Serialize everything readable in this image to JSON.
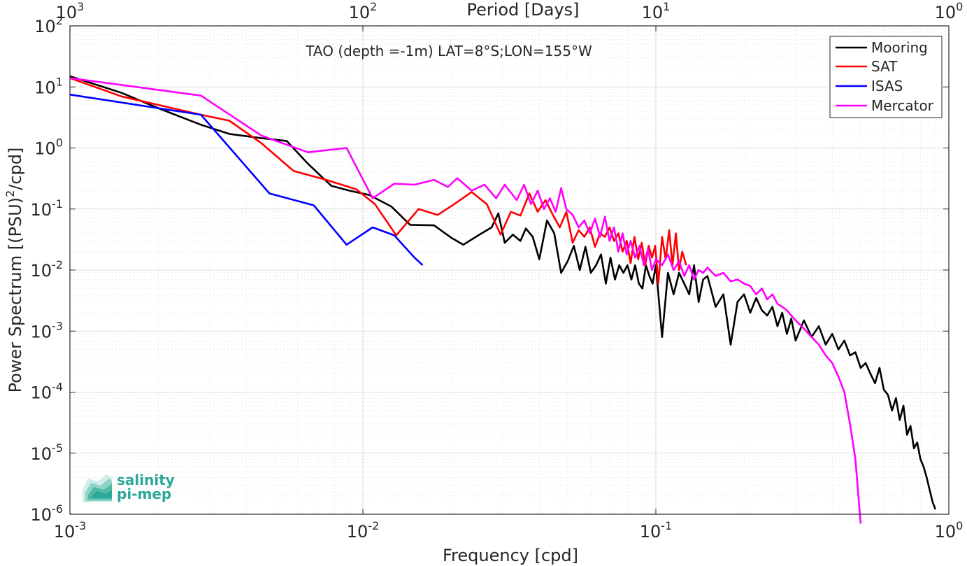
{
  "chart_data": {
    "type": "line",
    "title": "TAO (depth =-1m) LAT=8°S;LON=155°W",
    "xlabel": "Frequency [cpd]",
    "ylabel_prefix": "Power Spectrum [(PSU)",
    "ylabel_exp": "2",
    "ylabel_suffix": "/cpd]",
    "top_xlabel": "Period [Days]",
    "x_scale": "log",
    "y_scale": "log",
    "xlim": [
      0.001,
      1
    ],
    "ylim": [
      1e-06,
      100
    ],
    "grid": true,
    "legend_position": "top-right",
    "x_ticks": [
      {
        "base": "10",
        "exp": "-3",
        "value": 0.001
      },
      {
        "base": "10",
        "exp": "-2",
        "value": 0.01
      },
      {
        "base": "10",
        "exp": "-1",
        "value": 0.1
      },
      {
        "base": "10",
        "exp": "0",
        "value": 1
      }
    ],
    "top_ticks": [
      {
        "base": "10",
        "exp": "3",
        "value": 0.001
      },
      {
        "base": "10",
        "exp": "2",
        "value": 0.01
      },
      {
        "base": "10",
        "exp": "1",
        "value": 0.1
      },
      {
        "base": "10",
        "exp": "0",
        "value": 1
      }
    ],
    "y_ticks": [
      {
        "base": "10",
        "exp": "2",
        "value": 100
      },
      {
        "base": "10",
        "exp": "1",
        "value": 10
      },
      {
        "base": "10",
        "exp": "0",
        "value": 1
      },
      {
        "base": "10",
        "exp": "-1",
        "value": 0.1
      },
      {
        "base": "10",
        "exp": "-2",
        "value": 0.01
      },
      {
        "base": "10",
        "exp": "-3",
        "value": 0.001
      },
      {
        "base": "10",
        "exp": "-4",
        "value": 0.0001
      },
      {
        "base": "10",
        "exp": "-5",
        "value": 1e-05
      },
      {
        "base": "10",
        "exp": "-6",
        "value": 1e-06
      }
    ],
    "series": [
      {
        "name": "Mooring",
        "color": "#000000",
        "x": [
          0.001,
          0.0015,
          0.002,
          0.0028,
          0.0035,
          0.0045,
          0.0055,
          0.0065,
          0.0078,
          0.009,
          0.0105,
          0.0125,
          0.0145,
          0.0175,
          0.02,
          0.022,
          0.025,
          0.0275,
          0.029,
          0.0305,
          0.0325,
          0.0345,
          0.036,
          0.038,
          0.04,
          0.0425,
          0.045,
          0.0475,
          0.05,
          0.0525,
          0.055,
          0.0575,
          0.06,
          0.0625,
          0.065,
          0.0675,
          0.07,
          0.0725,
          0.075,
          0.0775,
          0.08,
          0.0825,
          0.085,
          0.0875,
          0.09,
          0.0925,
          0.095,
          0.0975,
          0.1,
          0.105,
          0.11,
          0.115,
          0.12,
          0.125,
          0.13,
          0.135,
          0.14,
          0.145,
          0.15,
          0.16,
          0.17,
          0.18,
          0.19,
          0.2,
          0.21,
          0.22,
          0.23,
          0.24,
          0.25,
          0.26,
          0.27,
          0.28,
          0.29,
          0.3,
          0.32,
          0.34,
          0.36,
          0.38,
          0.4,
          0.42,
          0.44,
          0.46,
          0.48,
          0.5,
          0.52,
          0.54,
          0.56,
          0.58,
          0.6,
          0.62,
          0.64,
          0.66,
          0.68,
          0.7,
          0.72,
          0.74,
          0.76,
          0.78,
          0.8,
          0.82,
          0.84,
          0.86,
          0.88,
          0.9
        ],
        "y": [
          15,
          8,
          4.5,
          2.4,
          1.7,
          1.45,
          1.3,
          0.55,
          0.24,
          0.2,
          0.17,
          0.11,
          0.055,
          0.054,
          0.034,
          0.026,
          0.038,
          0.05,
          0.085,
          0.028,
          0.038,
          0.03,
          0.048,
          0.035,
          0.015,
          0.065,
          0.04,
          0.009,
          0.014,
          0.025,
          0.01,
          0.024,
          0.009,
          0.012,
          0.018,
          0.006,
          0.016,
          0.007,
          0.012,
          0.009,
          0.012,
          0.007,
          0.012,
          0.006,
          0.005,
          0.012,
          0.008,
          0.006,
          0.012,
          0.0008,
          0.009,
          0.004,
          0.009,
          0.006,
          0.004,
          0.012,
          0.003,
          0.007,
          0.008,
          0.0025,
          0.004,
          0.0006,
          0.003,
          0.004,
          0.002,
          0.0035,
          0.0022,
          0.0018,
          0.0025,
          0.0012,
          0.002,
          0.0009,
          0.0016,
          0.0007,
          0.0015,
          0.0008,
          0.0012,
          0.0006,
          0.0009,
          0.0005,
          0.0007,
          0.0004,
          0.00045,
          0.00025,
          0.0003,
          0.0002,
          0.00014,
          0.00025,
          0.00011,
          9e-05,
          5e-05,
          8e-05,
          3.5e-05,
          6e-05,
          2e-05,
          2.8e-05,
          1.2e-05,
          1.5e-05,
          8e-06,
          6e-06,
          4e-06,
          2.5e-06,
          1.6e-06,
          1.2e-06
        ]
      },
      {
        "name": "SAT",
        "color": "#ff0000",
        "x": [
          0.001,
          0.0015,
          0.0028,
          0.0035,
          0.0045,
          0.0058,
          0.0075,
          0.0095,
          0.011,
          0.013,
          0.0155,
          0.018,
          0.0205,
          0.0235,
          0.0265,
          0.0295,
          0.032,
          0.0345,
          0.037,
          0.0395,
          0.042,
          0.0445,
          0.047,
          0.0495,
          0.052,
          0.0545,
          0.057,
          0.0595,
          0.062,
          0.0645,
          0.067,
          0.0695,
          0.072,
          0.0745,
          0.077,
          0.0795,
          0.082,
          0.0845,
          0.087,
          0.0895,
          0.092,
          0.0945,
          0.097,
          0.0995,
          0.102,
          0.105,
          0.108,
          0.111,
          0.114,
          0.117,
          0.12,
          0.123,
          0.127
        ],
        "y": [
          14,
          7,
          3.5,
          2.8,
          1.2,
          0.42,
          0.3,
          0.21,
          0.12,
          0.037,
          0.1,
          0.08,
          0.12,
          0.19,
          0.12,
          0.038,
          0.09,
          0.078,
          0.18,
          0.09,
          0.14,
          0.08,
          0.05,
          0.09,
          0.028,
          0.045,
          0.035,
          0.05,
          0.024,
          0.04,
          0.035,
          0.05,
          0.03,
          0.04,
          0.02,
          0.03,
          0.013,
          0.035,
          0.015,
          0.028,
          0.012,
          0.025,
          0.016,
          0.025,
          0.006,
          0.035,
          0.015,
          0.045,
          0.012,
          0.04,
          0.01,
          0.02,
          0.012
        ]
      },
      {
        "name": "ISAS",
        "color": "#0000ff",
        "x": [
          0.001,
          0.0028,
          0.0048,
          0.0068,
          0.0088,
          0.0108,
          0.0128,
          0.015,
          0.016
        ],
        "y": [
          7.5,
          3.5,
          0.18,
          0.115,
          0.026,
          0.05,
          0.037,
          0.016,
          0.012
        ]
      },
      {
        "name": "Mercator",
        "color": "#ff00ff",
        "x": [
          0.001,
          0.0028,
          0.0045,
          0.0065,
          0.0088,
          0.0108,
          0.0128,
          0.015,
          0.0175,
          0.0195,
          0.021,
          0.0235,
          0.026,
          0.0285,
          0.0305,
          0.0335,
          0.0355,
          0.0375,
          0.0395,
          0.0415,
          0.0435,
          0.0455,
          0.0475,
          0.0495,
          0.052,
          0.0545,
          0.057,
          0.0595,
          0.062,
          0.0645,
          0.067,
          0.0695,
          0.072,
          0.0745,
          0.077,
          0.0795,
          0.082,
          0.085,
          0.088,
          0.091,
          0.094,
          0.097,
          0.1,
          0.105,
          0.11,
          0.115,
          0.12,
          0.125,
          0.13,
          0.135,
          0.14,
          0.145,
          0.15,
          0.16,
          0.17,
          0.18,
          0.19,
          0.2,
          0.21,
          0.22,
          0.23,
          0.24,
          0.25,
          0.26,
          0.27,
          0.28,
          0.29,
          0.3,
          0.32,
          0.34,
          0.36,
          0.38,
          0.4,
          0.42,
          0.44,
          0.46,
          0.48,
          0.5
        ],
        "y": [
          14,
          7.2,
          1.6,
          0.85,
          1.0,
          0.15,
          0.26,
          0.25,
          0.3,
          0.23,
          0.32,
          0.2,
          0.25,
          0.15,
          0.25,
          0.14,
          0.25,
          0.12,
          0.2,
          0.1,
          0.15,
          0.09,
          0.22,
          0.1,
          0.08,
          0.05,
          0.065,
          0.04,
          0.07,
          0.035,
          0.075,
          0.03,
          0.05,
          0.02,
          0.04,
          0.018,
          0.03,
          0.016,
          0.025,
          0.012,
          0.022,
          0.01,
          0.015,
          0.012,
          0.018,
          0.01,
          0.014,
          0.008,
          0.012,
          0.007,
          0.01,
          0.009,
          0.011,
          0.008,
          0.009,
          0.0065,
          0.007,
          0.006,
          0.0055,
          0.004,
          0.005,
          0.0033,
          0.004,
          0.0028,
          0.0025,
          0.0022,
          0.0018,
          0.0015,
          0.0011,
          0.0008,
          0.0006,
          0.0004,
          0.0003,
          0.00018,
          0.0001,
          3e-05,
          8e-06,
          7e-07
        ]
      }
    ]
  },
  "logo": {
    "line1": "salinity",
    "line2": "pi-mep",
    "color": "#2aa89a"
  }
}
